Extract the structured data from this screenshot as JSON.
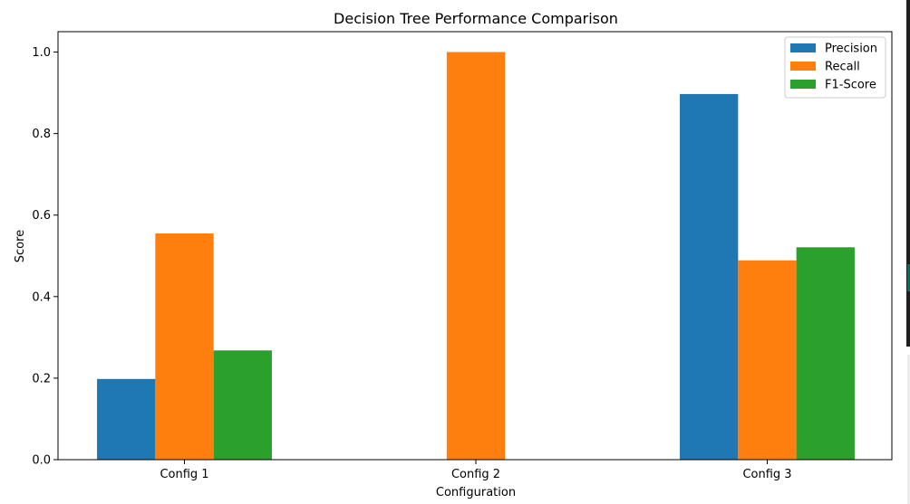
{
  "chart_data": {
    "type": "bar",
    "title": "Decision Tree Performance Comparison",
    "xlabel": "Configuration",
    "ylabel": "Score",
    "categories": [
      "Config 1",
      "Config 2",
      "Config 3"
    ],
    "series": [
      {
        "name": "Precision",
        "color": "#1f77b4",
        "values": [
          0.198,
          0.0,
          0.897
        ]
      },
      {
        "name": "Recall",
        "color": "#ff7f0e",
        "values": [
          0.555,
          1.0,
          0.489
        ]
      },
      {
        "name": "F1-Score",
        "color": "#2ca02c",
        "values": [
          0.268,
          0.0,
          0.521
        ]
      }
    ],
    "ylim": [
      0,
      1.05
    ],
    "yticks": [
      "0.0",
      "0.2",
      "0.4",
      "0.6",
      "0.8",
      "1.0"
    ],
    "grid": false,
    "legend_position": "top-right"
  }
}
